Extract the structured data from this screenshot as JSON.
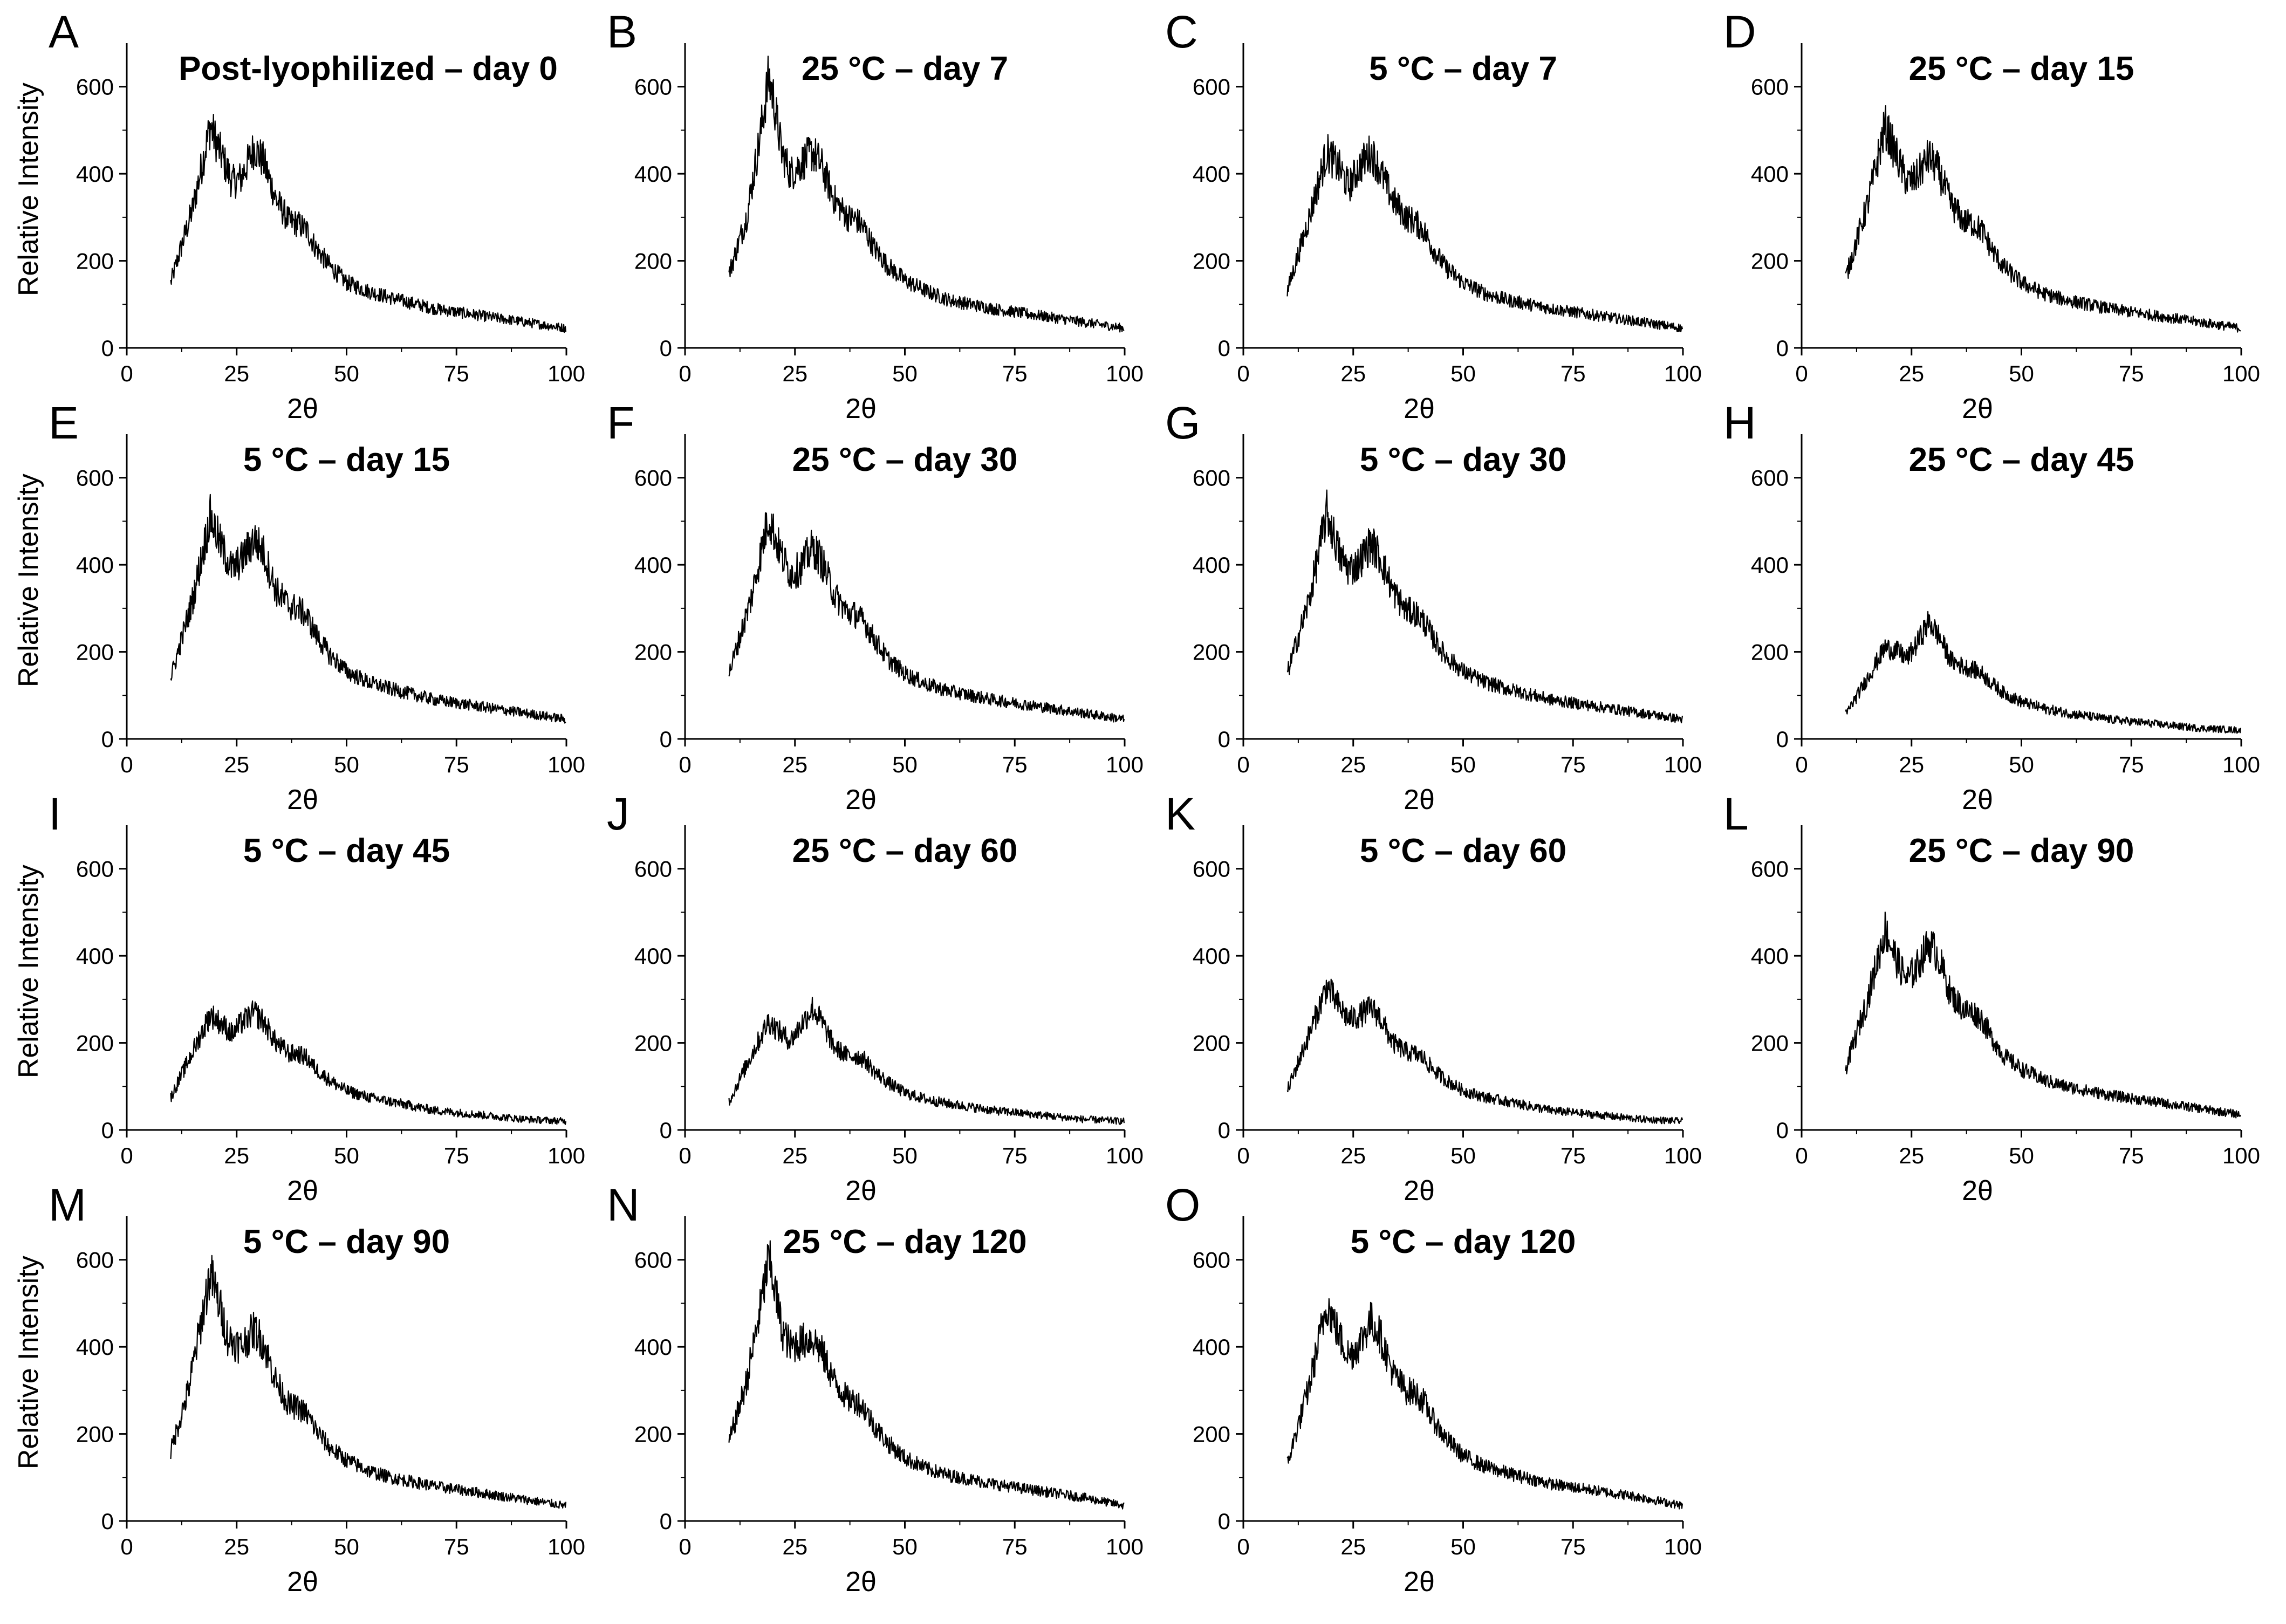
{
  "figure": {
    "shared_xlabel": "2θ",
    "shared_ylabel": "Relative Intensity"
  },
  "chart_data": [
    {
      "label": "A",
      "title": "Post-lyophilized – day 0",
      "type": "line",
      "xlabel": "2θ",
      "ylabel": "Relative Intensity",
      "xlim": [
        0,
        100
      ],
      "ylim": [
        0,
        700
      ],
      "xticks": [
        0,
        25,
        50,
        75,
        100
      ],
      "yticks": [
        0,
        200,
        400,
        600
      ],
      "x": [
        10,
        15,
        19,
        22,
        24,
        26,
        29,
        31,
        34,
        37,
        39,
        41,
        43,
        46,
        50,
        55,
        60,
        70,
        80,
        90,
        100
      ],
      "y": [
        150,
        320,
        510,
        430,
        380,
        390,
        460,
        430,
        340,
        290,
        285,
        270,
        230,
        190,
        150,
        130,
        115,
        90,
        75,
        60,
        45
      ]
    },
    {
      "label": "B",
      "title": "25 °C – day 7",
      "type": "line",
      "xlabel": "2θ",
      "ylabel": "",
      "xlim": [
        0,
        100
      ],
      "ylim": [
        0,
        700
      ],
      "xticks": [
        0,
        25,
        50,
        75,
        100
      ],
      "yticks": [
        0,
        200,
        400,
        600
      ],
      "x": [
        10,
        14,
        17,
        19,
        20,
        22,
        24,
        26,
        29,
        31,
        34,
        37,
        39,
        41,
        43,
        46,
        50,
        55,
        60,
        70,
        80,
        90,
        100
      ],
      "y": [
        170,
        300,
        480,
        620,
        580,
        450,
        400,
        420,
        450,
        420,
        340,
        300,
        295,
        270,
        230,
        190,
        155,
        130,
        110,
        90,
        75,
        60,
        45
      ]
    },
    {
      "label": "C",
      "title": "5 °C – day 7",
      "type": "line",
      "xlabel": "2θ",
      "ylabel": "",
      "xlim": [
        0,
        100
      ],
      "ylim": [
        0,
        700
      ],
      "xticks": [
        0,
        25,
        50,
        75,
        100
      ],
      "yticks": [
        0,
        200,
        400,
        600
      ],
      "x": [
        10,
        15,
        19,
        22,
        24,
        26,
        29,
        31,
        34,
        37,
        39,
        41,
        43,
        46,
        50,
        55,
        60,
        70,
        80,
        90,
        100
      ],
      "y": [
        130,
        300,
        450,
        410,
        370,
        410,
        450,
        410,
        340,
        300,
        290,
        270,
        230,
        185,
        150,
        125,
        110,
        90,
        75,
        60,
        45
      ]
    },
    {
      "label": "D",
      "title": "25 °C – day 15",
      "type": "line",
      "xlabel": "2θ",
      "ylabel": "",
      "xlim": [
        0,
        100
      ],
      "ylim": [
        0,
        700
      ],
      "xticks": [
        0,
        25,
        50,
        75,
        100
      ],
      "yticks": [
        0,
        200,
        400,
        600
      ],
      "x": [
        10,
        15,
        19,
        22,
        24,
        26,
        29,
        31,
        34,
        37,
        39,
        41,
        43,
        46,
        50,
        55,
        60,
        70,
        80,
        90,
        100
      ],
      "y": [
        160,
        330,
        510,
        430,
        380,
        390,
        440,
        410,
        330,
        290,
        285,
        270,
        230,
        185,
        150,
        125,
        110,
        90,
        75,
        60,
        45
      ]
    },
    {
      "label": "E",
      "title": "5 °C – day 15",
      "type": "line",
      "xlabel": "2θ",
      "ylabel": "Relative Intensity",
      "xlim": [
        0,
        100
      ],
      "ylim": [
        0,
        700
      ],
      "xticks": [
        0,
        25,
        50,
        75,
        100
      ],
      "yticks": [
        0,
        200,
        400,
        600
      ],
      "x": [
        10,
        15,
        19,
        22,
        24,
        26,
        29,
        31,
        34,
        37,
        39,
        41,
        43,
        46,
        50,
        55,
        60,
        70,
        80,
        90,
        100
      ],
      "y": [
        140,
        320,
        510,
        430,
        390,
        410,
        460,
        430,
        340,
        305,
        300,
        280,
        240,
        195,
        155,
        130,
        115,
        90,
        75,
        60,
        45
      ]
    },
    {
      "label": "F",
      "title": "25 °C – day 30",
      "type": "line",
      "xlabel": "2θ",
      "ylabel": "",
      "xlim": [
        0,
        100
      ],
      "ylim": [
        0,
        700
      ],
      "xticks": [
        0,
        25,
        50,
        75,
        100
      ],
      "yticks": [
        0,
        200,
        400,
        600
      ],
      "x": [
        10,
        15,
        19,
        22,
        24,
        26,
        29,
        31,
        34,
        37,
        39,
        41,
        43,
        46,
        50,
        55,
        60,
        70,
        80,
        90,
        100
      ],
      "y": [
        150,
        320,
        510,
        420,
        380,
        390,
        440,
        410,
        330,
        290,
        285,
        265,
        230,
        185,
        150,
        125,
        110,
        90,
        75,
        60,
        45
      ]
    },
    {
      "label": "G",
      "title": "5 °C – day 30",
      "type": "line",
      "xlabel": "2θ",
      "ylabel": "",
      "xlim": [
        0,
        100
      ],
      "ylim": [
        0,
        700
      ],
      "xticks": [
        0,
        25,
        50,
        75,
        100
      ],
      "yticks": [
        0,
        200,
        400,
        600
      ],
      "x": [
        10,
        15,
        19,
        22,
        24,
        26,
        29,
        31,
        34,
        37,
        39,
        41,
        43,
        46,
        50,
        55,
        60,
        70,
        80,
        90,
        100
      ],
      "y": [
        150,
        320,
        520,
        420,
        390,
        400,
        450,
        420,
        340,
        295,
        290,
        270,
        235,
        190,
        155,
        130,
        115,
        90,
        75,
        60,
        45
      ]
    },
    {
      "label": "H",
      "title": "25 °C – day 45",
      "type": "line",
      "xlabel": "2θ",
      "ylabel": "",
      "xlim": [
        0,
        100
      ],
      "ylim": [
        0,
        700
      ],
      "xticks": [
        0,
        25,
        50,
        75,
        100
      ],
      "yticks": [
        0,
        200,
        400,
        600
      ],
      "x": [
        10,
        15,
        19,
        22,
        24,
        26,
        29,
        31,
        34,
        37,
        39,
        41,
        43,
        46,
        50,
        55,
        60,
        70,
        80,
        90,
        100
      ],
      "y": [
        55,
        140,
        210,
        200,
        185,
        215,
        270,
        240,
        180,
        165,
        160,
        150,
        130,
        105,
        85,
        70,
        60,
        45,
        35,
        25,
        20
      ]
    },
    {
      "label": "I",
      "title": "5 °C – day 45",
      "type": "line",
      "xlabel": "2θ",
      "ylabel": "Relative Intensity",
      "xlim": [
        0,
        100
      ],
      "ylim": [
        0,
        700
      ],
      "xticks": [
        0,
        25,
        50,
        75,
        100
      ],
      "yticks": [
        0,
        200,
        400,
        600
      ],
      "x": [
        10,
        15,
        19,
        22,
        24,
        26,
        29,
        31,
        34,
        37,
        39,
        41,
        43,
        46,
        50,
        55,
        60,
        70,
        80,
        90,
        100
      ],
      "y": [
        75,
        180,
        265,
        240,
        220,
        245,
        270,
        250,
        200,
        175,
        175,
        165,
        140,
        115,
        90,
        75,
        65,
        45,
        35,
        25,
        20
      ]
    },
    {
      "label": "J",
      "title": "25 °C – day 60",
      "type": "line",
      "xlabel": "2θ",
      "ylabel": "",
      "xlim": [
        0,
        100
      ],
      "ylim": [
        0,
        700
      ],
      "xticks": [
        0,
        25,
        50,
        75,
        100
      ],
      "yticks": [
        0,
        200,
        400,
        600
      ],
      "x": [
        10,
        15,
        19,
        22,
        24,
        26,
        29,
        31,
        34,
        37,
        39,
        41,
        43,
        46,
        50,
        55,
        60,
        70,
        80,
        90,
        100
      ],
      "y": [
        65,
        170,
        250,
        220,
        205,
        235,
        280,
        250,
        190,
        170,
        170,
        160,
        135,
        110,
        85,
        70,
        60,
        45,
        35,
        25,
        20
      ]
    },
    {
      "label": "K",
      "title": "5 °C – day 60",
      "type": "line",
      "xlabel": "2θ",
      "ylabel": "",
      "xlim": [
        0,
        100
      ],
      "ylim": [
        0,
        700
      ],
      "xticks": [
        0,
        25,
        50,
        75,
        100
      ],
      "yticks": [
        0,
        200,
        400,
        600
      ],
      "x": [
        10,
        15,
        19,
        22,
        24,
        26,
        29,
        31,
        34,
        37,
        39,
        41,
        43,
        46,
        50,
        55,
        60,
        70,
        80,
        90,
        100
      ],
      "y": [
        90,
        220,
        330,
        280,
        255,
        260,
        280,
        260,
        200,
        180,
        175,
        165,
        140,
        115,
        90,
        75,
        65,
        45,
        35,
        25,
        20
      ]
    },
    {
      "label": "L",
      "title": "25 °C – day 90",
      "type": "line",
      "xlabel": "2θ",
      "ylabel": "",
      "xlim": [
        0,
        100
      ],
      "ylim": [
        0,
        700
      ],
      "xticks": [
        0,
        25,
        50,
        75,
        100
      ],
      "yticks": [
        0,
        200,
        400,
        600
      ],
      "x": [
        10,
        15,
        19,
        22,
        24,
        26,
        29,
        31,
        34,
        37,
        39,
        41,
        43,
        46,
        50,
        55,
        60,
        70,
        80,
        90,
        100
      ],
      "y": [
        140,
        300,
        460,
        380,
        345,
        370,
        430,
        400,
        310,
        275,
        270,
        255,
        215,
        170,
        140,
        115,
        100,
        80,
        65,
        50,
        35
      ]
    },
    {
      "label": "M",
      "title": "5 °C – day 90",
      "type": "line",
      "xlabel": "2θ",
      "ylabel": "Relative Intensity",
      "xlim": [
        0,
        100
      ],
      "ylim": [
        0,
        700
      ],
      "xticks": [
        0,
        25,
        50,
        75,
        100
      ],
      "yticks": [
        0,
        200,
        400,
        600
      ],
      "x": [
        10,
        14,
        17,
        19,
        21,
        23,
        26,
        29,
        31,
        34,
        37,
        39,
        41,
        43,
        46,
        50,
        55,
        60,
        70,
        80,
        90,
        100
      ],
      "y": [
        160,
        300,
        460,
        570,
        500,
        420,
        400,
        440,
        410,
        320,
        265,
        260,
        245,
        210,
        170,
        140,
        115,
        100,
        80,
        65,
        50,
        35
      ]
    },
    {
      "label": "N",
      "title": "25 °C – day 120",
      "type": "line",
      "xlabel": "2θ",
      "ylabel": "",
      "xlim": [
        0,
        100
      ],
      "ylim": [
        0,
        700
      ],
      "xticks": [
        0,
        25,
        50,
        75,
        100
      ],
      "yticks": [
        0,
        200,
        400,
        600
      ],
      "x": [
        10,
        14,
        17,
        19,
        20,
        22,
        24,
        26,
        29,
        31,
        34,
        37,
        39,
        41,
        43,
        46,
        50,
        55,
        60,
        70,
        80,
        90,
        100
      ],
      "y": [
        180,
        320,
        480,
        600,
        560,
        440,
        400,
        410,
        420,
        390,
        320,
        280,
        275,
        255,
        220,
        180,
        145,
        120,
        105,
        85,
        70,
        55,
        35
      ]
    },
    {
      "label": "O",
      "title": "5 °C – day 120",
      "type": "line",
      "xlabel": "2θ",
      "ylabel": "",
      "xlim": [
        0,
        100
      ],
      "ylim": [
        0,
        700
      ],
      "xticks": [
        0,
        25,
        50,
        75,
        100
      ],
      "yticks": [
        0,
        200,
        400,
        600
      ],
      "x": [
        10,
        15,
        19,
        22,
        24,
        26,
        29,
        31,
        34,
        37,
        39,
        41,
        43,
        46,
        50,
        55,
        60,
        70,
        80,
        90,
        100
      ],
      "y": [
        130,
        310,
        500,
        420,
        380,
        400,
        460,
        430,
        340,
        300,
        295,
        275,
        235,
        190,
        150,
        125,
        110,
        85,
        70,
        55,
        35
      ]
    }
  ]
}
